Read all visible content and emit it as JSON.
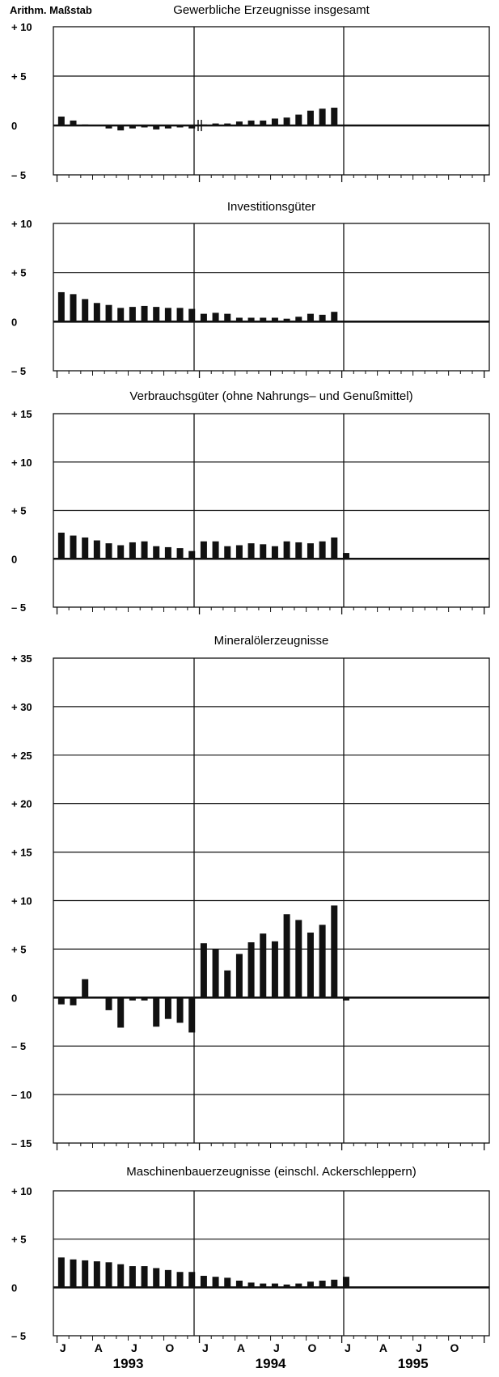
{
  "y_caption": "Arithm. Maßstab",
  "colors": {
    "bars": "#111111",
    "frame": "#111111",
    "grid": "#111111",
    "background": "#ffffff"
  },
  "chart_data": [
    {
      "type": "bar",
      "title": "Gewerbliche Erzeugnisse insgesamt",
      "xlabel": "",
      "ylabel": "Arithm. Maßstab",
      "ylim": [
        -5,
        10
      ],
      "y_ticks": [
        10,
        5,
        0,
        -5
      ],
      "y_tick_labels": [
        "+ 10",
        "+ 5",
        "0",
        "– 5"
      ],
      "grid": true,
      "axis_break": "between 1993 and 1994",
      "x_period": "Jan 1993 – Dec 1995",
      "values": [
        0.9,
        0.5,
        0.1,
        0.0,
        -0.3,
        -0.5,
        -0.3,
        -0.2,
        -0.4,
        -0.3,
        -0.2,
        -0.3,
        0.1,
        0.2,
        0.2,
        0.4,
        0.5,
        0.5,
        0.7,
        0.8,
        1.1,
        1.5,
        1.7,
        1.8
      ]
    },
    {
      "type": "bar",
      "title": "Investitionsgüter",
      "xlabel": "",
      "ylabel": "",
      "ylim": [
        -5,
        10
      ],
      "y_ticks": [
        10,
        5,
        0,
        -5
      ],
      "y_tick_labels": [
        "+ 10",
        "+ 5",
        "0",
        "– 5"
      ],
      "grid": true,
      "values": [
        3.0,
        2.8,
        2.3,
        1.9,
        1.7,
        1.4,
        1.5,
        1.6,
        1.5,
        1.4,
        1.4,
        1.3,
        0.8,
        0.9,
        0.8,
        0.4,
        0.4,
        0.4,
        0.4,
        0.3,
        0.5,
        0.8,
        0.7,
        1.0
      ]
    },
    {
      "type": "bar",
      "title": "Verbrauchsgüter (ohne Nahrungs– und Genußmittel)",
      "xlabel": "",
      "ylabel": "",
      "ylim": [
        -5,
        15
      ],
      "y_ticks": [
        15,
        10,
        5,
        0,
        -5
      ],
      "y_tick_labels": [
        "+ 15",
        "+ 10",
        "+ 5",
        "0",
        "– 5"
      ],
      "grid": true,
      "values": [
        2.7,
        2.4,
        2.2,
        1.9,
        1.6,
        1.4,
        1.7,
        1.8,
        1.3,
        1.2,
        1.1,
        0.8,
        1.8,
        1.8,
        1.3,
        1.4,
        1.6,
        1.5,
        1.3,
        1.8,
        1.7,
        1.6,
        1.8,
        2.2,
        0.6
      ]
    },
    {
      "type": "bar",
      "title": "Mineralölerzeugnisse",
      "xlabel": "",
      "ylabel": "",
      "ylim": [
        -15,
        35
      ],
      "y_ticks": [
        35,
        30,
        25,
        20,
        15,
        10,
        5,
        0,
        -5,
        -10,
        -15
      ],
      "y_tick_labels": [
        "+ 35",
        "+ 30",
        "+ 25",
        "+ 20",
        "+ 15",
        "+ 10",
        "+ 5",
        "0",
        "– 5",
        "– 10",
        "– 15"
      ],
      "grid": true,
      "values": [
        -0.7,
        -0.8,
        1.9,
        0.1,
        -1.3,
        -3.1,
        -0.3,
        -0.3,
        -3.0,
        -2.2,
        -2.6,
        -3.6,
        5.6,
        5.0,
        2.8,
        4.5,
        5.7,
        6.6,
        5.8,
        8.6,
        8.0,
        6.7,
        7.5,
        9.5,
        -0.3
      ]
    },
    {
      "type": "bar",
      "title": "Maschinenbauerzeugnisse (einschl. Ackerschleppern)",
      "xlabel": "",
      "ylabel": "",
      "ylim": [
        -5,
        10
      ],
      "y_ticks": [
        10,
        5,
        0,
        -5
      ],
      "y_tick_labels": [
        "+ 10",
        "+ 5",
        "0",
        "– 5"
      ],
      "grid": true,
      "month_labels": [
        "J",
        "A",
        "J",
        "O",
        "J",
        "A",
        "J",
        "O",
        "J",
        "A",
        "J",
        "O"
      ],
      "years": [
        "1993",
        "1994",
        "1995"
      ],
      "values": [
        3.1,
        2.9,
        2.8,
        2.7,
        2.6,
        2.4,
        2.2,
        2.2,
        2.0,
        1.8,
        1.6,
        1.6,
        1.2,
        1.1,
        1.0,
        0.7,
        0.5,
        0.4,
        0.4,
        0.3,
        0.4,
        0.6,
        0.7,
        0.8,
        1.1
      ]
    }
  ]
}
